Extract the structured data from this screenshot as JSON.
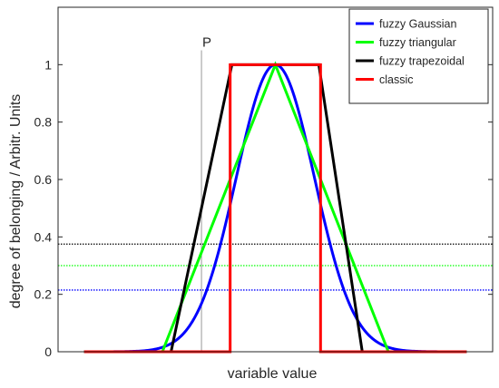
{
  "chart_data": {
    "type": "line",
    "xlabel": "variable value",
    "ylabel": "degree of belonging / Arbitr. Units",
    "xlim": [
      -2.5,
      2.5
    ],
    "ylim": [
      0,
      1.2
    ],
    "yticks": [
      {
        "value": 0,
        "label": "0"
      },
      {
        "value": 0.2,
        "label": "0.2"
      },
      {
        "value": 0.4,
        "label": "0.4"
      },
      {
        "value": 0.6,
        "label": "0.6"
      },
      {
        "value": 0.8,
        "label": "0.8"
      },
      {
        "value": 1,
        "label": "1"
      }
    ],
    "grid": false,
    "legend_position": "top-right",
    "series": [
      {
        "name": "fuzzy Gaussian",
        "color": "#0000ff",
        "kind": "gaussian",
        "mu": 0,
        "sigma": 0.45,
        "xrange": [
          -2.2,
          2.2
        ]
      },
      {
        "name": "fuzzy triangular",
        "color": "#00ff00",
        "kind": "polyline",
        "points": [
          [
            -2.2,
            0
          ],
          [
            -1.3,
            0
          ],
          [
            0,
            1
          ],
          [
            1.3,
            0
          ],
          [
            2.2,
            0
          ]
        ]
      },
      {
        "name": "fuzzy trapezoidal",
        "color": "#000000",
        "kind": "polyline",
        "points": [
          [
            -2.2,
            0
          ],
          [
            -1.2,
            0
          ],
          [
            -0.5,
            1
          ],
          [
            0.5,
            1
          ],
          [
            1.0,
            0
          ],
          [
            2.2,
            0
          ]
        ]
      },
      {
        "name": "classic",
        "color": "#ff0000",
        "kind": "polyline",
        "points": [
          [
            -2.2,
            0
          ],
          [
            -0.52,
            0
          ],
          [
            -0.52,
            1
          ],
          [
            0.52,
            1
          ],
          [
            0.52,
            0
          ],
          [
            2.2,
            0
          ]
        ]
      }
    ],
    "reference_lines": [
      {
        "axis": "y",
        "value": 0.375,
        "color": "#000000",
        "style": "dotted"
      },
      {
        "axis": "y",
        "value": 0.3,
        "color": "#00ff00",
        "style": "dotted"
      },
      {
        "axis": "y",
        "value": 0.215,
        "color": "#0000ff",
        "style": "dotted"
      },
      {
        "axis": "x",
        "value": -0.85,
        "color": "#999999",
        "style": "solid",
        "label": "P"
      }
    ]
  }
}
